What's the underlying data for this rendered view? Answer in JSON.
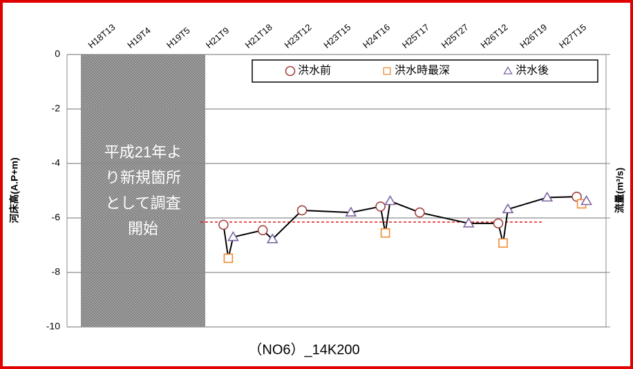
{
  "chart_data": {
    "type": "scatter",
    "title": "（NO6）_14K200",
    "y_label": "河床高(A.P+m)",
    "y2_label": "流量(m³/s)",
    "annotation": [
      "平成21年よ",
      "り新規箇所",
      "として調査",
      "開始"
    ],
    "categories": [
      "H18T13",
      "H19T4",
      "H19T5",
      "H21T9",
      "H21T18",
      "H23T12",
      "H23T15",
      "H24T16",
      "H25T17",
      "H25T27",
      "H26T12",
      "H26T19",
      "H27T15"
    ],
    "series": [
      {
        "name": "洪水前",
        "marker": "circle",
        "color": "#a0403c",
        "values": [
          null,
          null,
          null,
          -6.25,
          -6.45,
          -5.72,
          null,
          -5.58,
          -5.8,
          null,
          -6.2,
          null,
          -5.22
        ]
      },
      {
        "name": "洪水時最深",
        "marker": "square",
        "color": "#f08a30",
        "values": [
          null,
          null,
          null,
          -7.48,
          null,
          null,
          null,
          -6.55,
          null,
          null,
          -6.92,
          null,
          -5.48
        ]
      },
      {
        "name": "洪水後",
        "marker": "triangle",
        "color": "#7a62a0",
        "values": [
          null,
          null,
          null,
          -6.7,
          -6.78,
          null,
          -5.8,
          -5.38,
          null,
          -6.2,
          -5.68,
          -5.25,
          -5.38
        ]
      }
    ],
    "reference_line": -6.15,
    "ylim": [
      -10,
      0
    ],
    "yticks": [
      -10,
      -8,
      -6,
      -4,
      -2,
      0
    ],
    "grid": true
  }
}
